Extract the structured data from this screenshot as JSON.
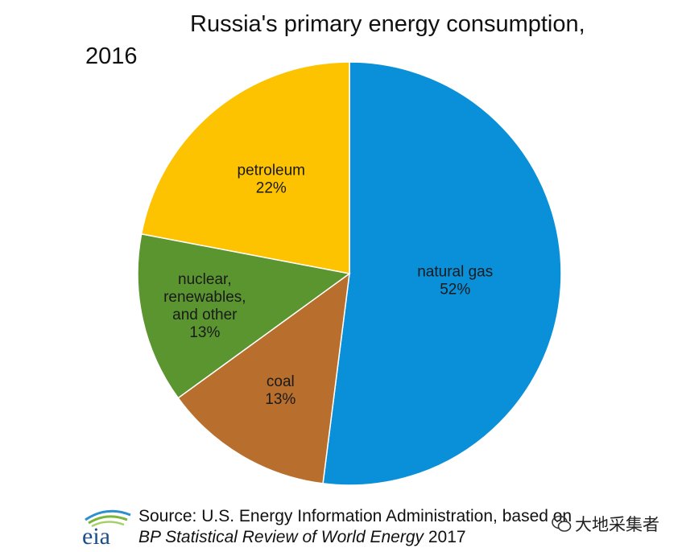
{
  "chart_data": {
    "type": "pie",
    "title": "Russia's primary energy consumption,",
    "subtitle": "2016",
    "slices": [
      {
        "label": "natural gas",
        "pct_text": "52%",
        "value": 52,
        "color": "#0a90d8"
      },
      {
        "label": "coal",
        "pct_text": "13%",
        "value": 13,
        "color": "#b86e2c"
      },
      {
        "label_lines": [
          "nuclear,",
          "renewables,",
          "and other"
        ],
        "pct_text": "13%",
        "value": 13,
        "color": "#5a9530"
      },
      {
        "label": "petroleum",
        "pct_text": "22%",
        "value": 22,
        "color": "#fdc300"
      }
    ]
  },
  "footer": {
    "logo_text": "eia",
    "source_line1": "Source: U.S. Energy Information Administration, based on",
    "source_line2_italic": "BP Statistical Review of World Energy",
    "source_line2_year": " 2017"
  },
  "watermark": {
    "text": "大地采集者"
  }
}
